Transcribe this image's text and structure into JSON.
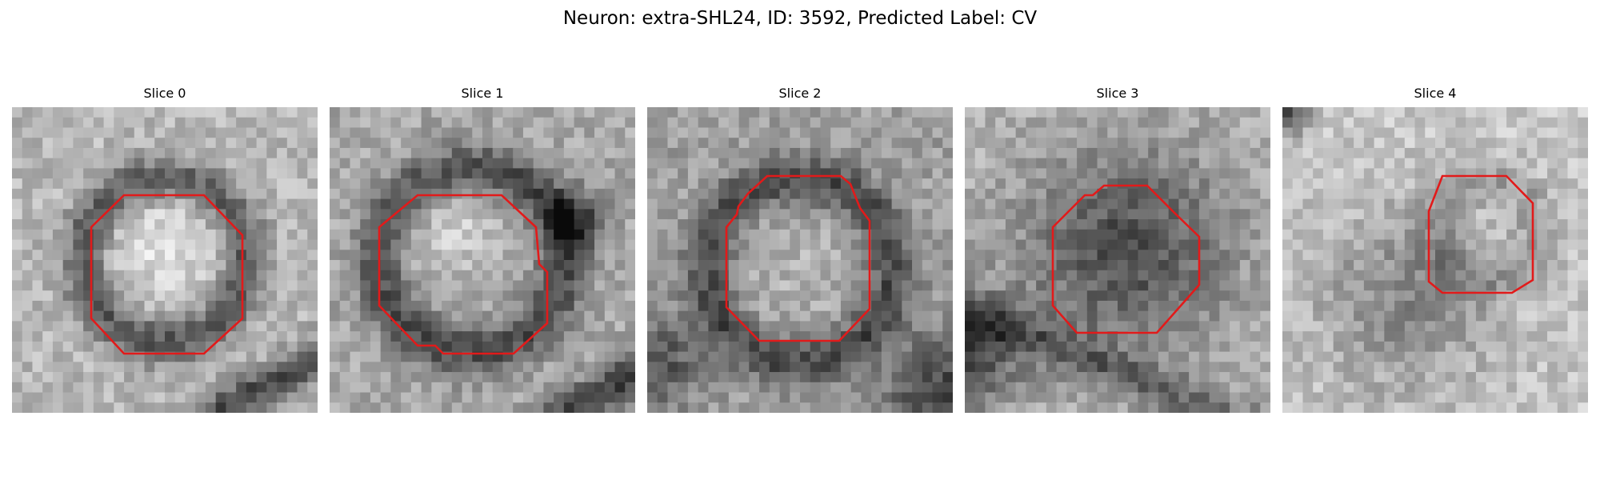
{
  "figure": {
    "title": "Neuron: extra-SHL24, ID: 3592, Predicted Label: CV"
  },
  "contour_color": "#e21a1a",
  "colormap": "grayscale",
  "panels": [
    {
      "title": "Slice 0"
    },
    {
      "title": "Slice 1"
    },
    {
      "title": "Slice 2"
    },
    {
      "title": "Slice 3"
    },
    {
      "title": "Slice 4"
    }
  ]
}
